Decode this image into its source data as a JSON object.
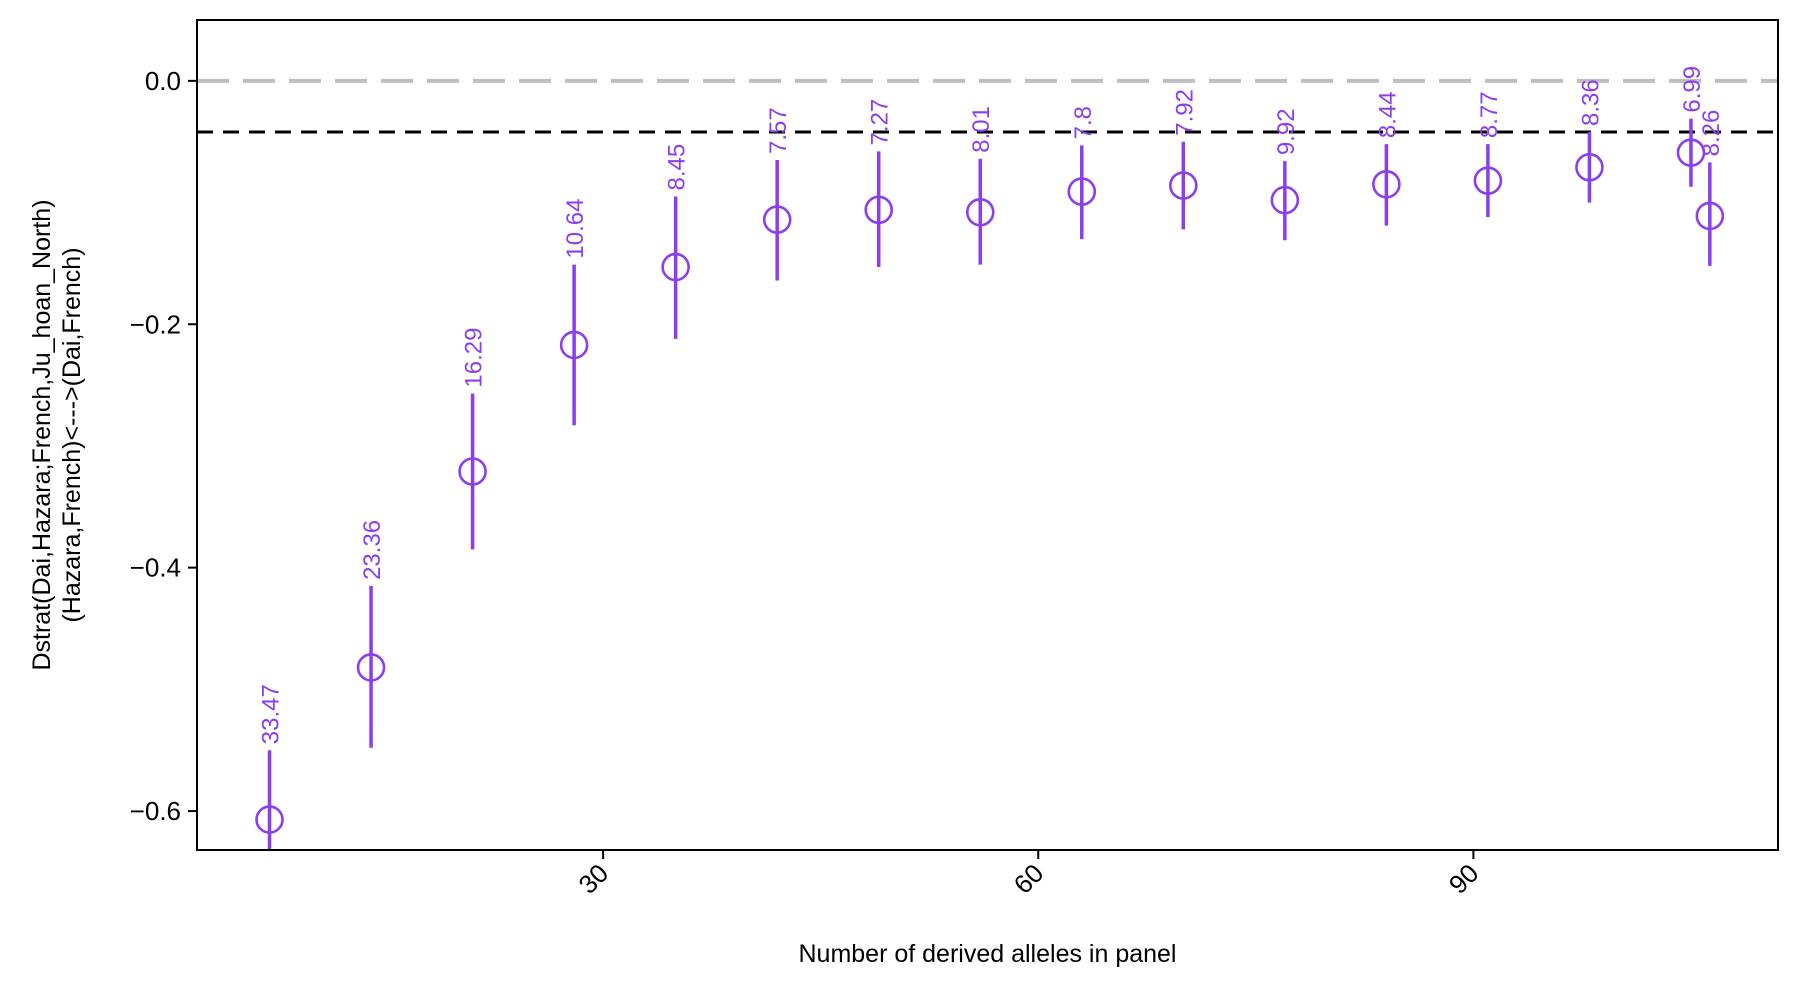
{
  "chart_data": {
    "type": "scatter",
    "title": "",
    "xlabel": "Number of derived alleles in panel",
    "ylabel_lines": [
      "Dstrat(Dai,Hazara;French,Ju_hoan_North)",
      "(Hazara,French)<--->(Dai,French)"
    ],
    "xlim": [
      2,
      111
    ],
    "ylim": [
      -0.632,
      0.05
    ],
    "xticks": [
      30,
      60,
      90
    ],
    "yticks": [
      0.0,
      -0.2,
      -0.4,
      -0.6
    ],
    "ytick_labels": [
      "0.0",
      "−0.2",
      "−0.4",
      "−0.6"
    ],
    "reference_lines": [
      {
        "y": 0.0,
        "style": "long-dash",
        "color": "#bebebe"
      },
      {
        "y": -0.042,
        "style": "dash",
        "color": "#000000"
      }
    ],
    "series": [
      {
        "color": "#8a3ef0",
        "points": [
          {
            "x": 7,
            "y": -0.607,
            "ylow": -0.66,
            "yhigh": -0.55,
            "label": "33.47"
          },
          {
            "x": 14,
            "y": -0.482,
            "ylow": -0.548,
            "yhigh": -0.415,
            "label": "23.36"
          },
          {
            "x": 21,
            "y": -0.321,
            "ylow": -0.385,
            "yhigh": -0.257,
            "label": "16.29"
          },
          {
            "x": 28,
            "y": -0.217,
            "ylow": -0.283,
            "yhigh": -0.151,
            "label": "10.64"
          },
          {
            "x": 35,
            "y": -0.153,
            "ylow": -0.212,
            "yhigh": -0.095,
            "label": "8.45"
          },
          {
            "x": 42,
            "y": -0.114,
            "ylow": -0.164,
            "yhigh": -0.065,
            "label": "7.57"
          },
          {
            "x": 49,
            "y": -0.106,
            "ylow": -0.153,
            "yhigh": -0.058,
            "label": "7.27"
          },
          {
            "x": 56,
            "y": -0.108,
            "ylow": -0.151,
            "yhigh": -0.064,
            "label": "8.01"
          },
          {
            "x": 63,
            "y": -0.091,
            "ylow": -0.13,
            "yhigh": -0.053,
            "label": "7.8"
          },
          {
            "x": 70,
            "y": -0.086,
            "ylow": -0.122,
            "yhigh": -0.05,
            "label": "7.92"
          },
          {
            "x": 77,
            "y": -0.098,
            "ylow": -0.131,
            "yhigh": -0.066,
            "label": "9.92"
          },
          {
            "x": 84,
            "y": -0.085,
            "ylow": -0.119,
            "yhigh": -0.052,
            "label": "8.44"
          },
          {
            "x": 91,
            "y": -0.082,
            "ylow": -0.112,
            "yhigh": -0.052,
            "label": "8.77"
          },
          {
            "x": 98,
            "y": -0.071,
            "ylow": -0.1,
            "yhigh": -0.042,
            "label": "8.36"
          },
          {
            "x": 105,
            "y": -0.059,
            "ylow": -0.087,
            "yhigh": -0.031,
            "label": "6.99"
          },
          {
            "x": 106.3,
            "y": -0.111,
            "ylow": -0.152,
            "yhigh": -0.067,
            "label": "8.26"
          }
        ]
      }
    ],
    "grid": false,
    "legend": "none"
  }
}
